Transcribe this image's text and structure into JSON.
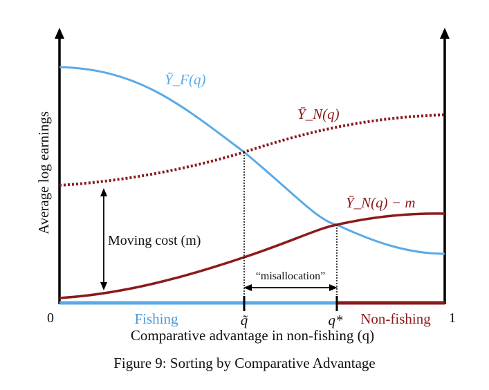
{
  "figure": {
    "caption": "Figure 9: Sorting by Comparative Advantage",
    "ylabel": "Average log earnings",
    "xlabel": "Comparative advantage in non-fishing (q)",
    "x_min_label": "0",
    "x_max_label": "1",
    "colors": {
      "fishing": "#5aaae6",
      "nonfishing": "#8b1a1a",
      "axis": "#000000"
    },
    "curves": {
      "yf_label": "Ȳ_F(q)",
      "yn_label": "Ȳ_N(q)",
      "yn_minus_m_label": "Ȳ_N(q) − m"
    },
    "annotations": {
      "moving_cost": "Moving cost (m)",
      "misallocation": "“misallocation”",
      "q_tilde": "q̃",
      "q_star": "q*",
      "fishing_region": "Fishing",
      "nonfishing_region": "Non-fishing"
    }
  }
}
